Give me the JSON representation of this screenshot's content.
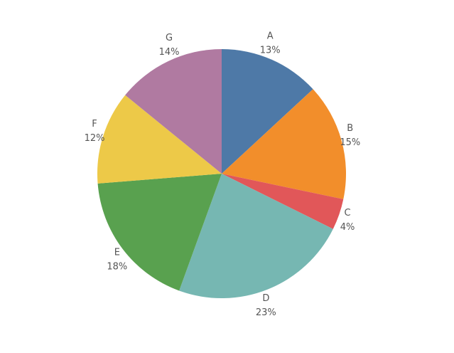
{
  "chart_data": {
    "type": "pie",
    "categories": [
      "A",
      "B",
      "C",
      "D",
      "E",
      "F",
      "G"
    ],
    "values": [
      13,
      15,
      4,
      23,
      18,
      12,
      14
    ],
    "value_labels": [
      "13%",
      "15%",
      "4%",
      "23%",
      "18%",
      "12%",
      "14%"
    ],
    "colors": [
      "#4e79a7",
      "#f28e2b",
      "#e15759",
      "#76b7b2",
      "#59a14f",
      "#edc948",
      "#b07aa1"
    ]
  }
}
